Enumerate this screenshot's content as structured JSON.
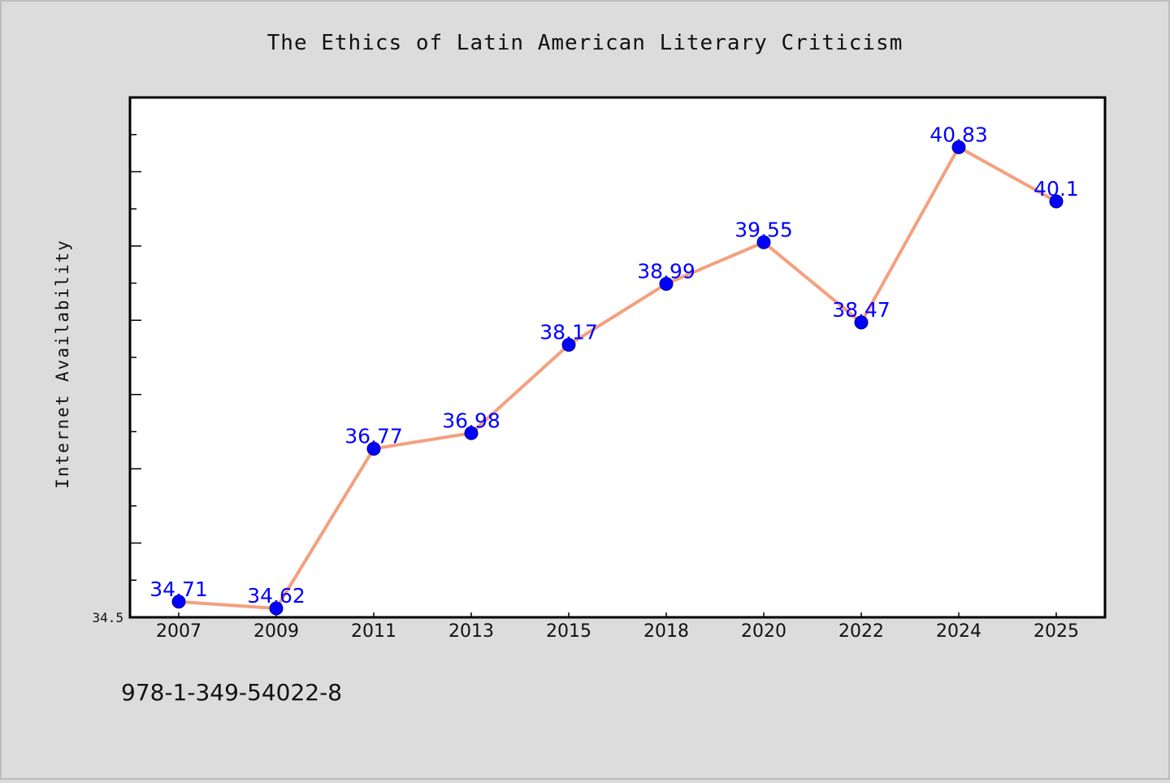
{
  "chart_data": {
    "type": "line",
    "title": "The Ethics of Latin American Literary Criticism",
    "xlabel": "",
    "ylabel": "Internet Availability",
    "categories": [
      "2007",
      "2009",
      "2011",
      "2013",
      "2015",
      "2018",
      "2020",
      "2022",
      "2024",
      "2025"
    ],
    "series": [
      {
        "values": [
          34.71,
          34.62,
          36.77,
          36.98,
          38.17,
          38.99,
          39.55,
          38.47,
          40.83,
          40.1
        ]
      }
    ],
    "ylim": [
      34.5,
      41.5
    ],
    "y_tick_label": "34.5",
    "grid": false,
    "legend": "none",
    "line_color": "#f4a07e",
    "marker_color": "#0000ff",
    "label_color": "#0000ff"
  },
  "footer": {
    "isbn": "978-1-349-54022-8"
  }
}
